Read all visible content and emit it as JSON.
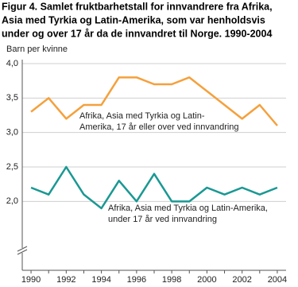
{
  "chart_data": {
    "type": "line",
    "title": [
      "Figur 4. Samlet fruktbarhetstall for innvandrere fra Afrika,",
      "Asia med Tyrkia og Latin-Amerika, som var henholdsvis",
      "under og over 17 år da de innvandret til Norge. 1990-2004"
    ],
    "y_label": "Barn per kvinne",
    "x": [
      1990,
      1991,
      1992,
      1993,
      1994,
      1995,
      1996,
      1997,
      1998,
      1999,
      2000,
      2001,
      2002,
      2003,
      2004
    ],
    "xlim": [
      1989.5,
      2004.5
    ],
    "xticks": [
      1990,
      1992,
      1994,
      1996,
      1998,
      2000,
      2002,
      2004
    ],
    "ylim": [
      1.0,
      4.0
    ],
    "yticks": [
      {
        "value": 2.0,
        "label": "2,0"
      },
      {
        "value": 2.5,
        "label": "2,5"
      },
      {
        "value": 3.0,
        "label": "3,0"
      },
      {
        "value": 3.5,
        "label": "3,5"
      },
      {
        "value": 4.0,
        "label": "4,0"
      }
    ],
    "grid": true,
    "series": [
      {
        "name": [
          "Afrika, Asia med Tyrkia og Latin-",
          "Amerika, 17 år eller over ved innvandring"
        ],
        "color": "#f5a03c",
        "values": [
          3.3,
          3.5,
          3.2,
          3.4,
          3.4,
          3.8,
          3.8,
          3.7,
          3.7,
          3.8,
          3.6,
          3.4,
          3.2,
          3.4,
          3.1
        ]
      },
      {
        "name": [
          "Afrika, Asia med Tyrkia og Latin-Amerika,",
          "under 17 år ved innvandring"
        ],
        "color": "#1a9893",
        "values": [
          2.2,
          2.1,
          2.5,
          2.1,
          1.9,
          2.3,
          2.0,
          2.4,
          2.0,
          2.0,
          2.2,
          2.1,
          2.2,
          2.1,
          2.2
        ]
      }
    ]
  }
}
